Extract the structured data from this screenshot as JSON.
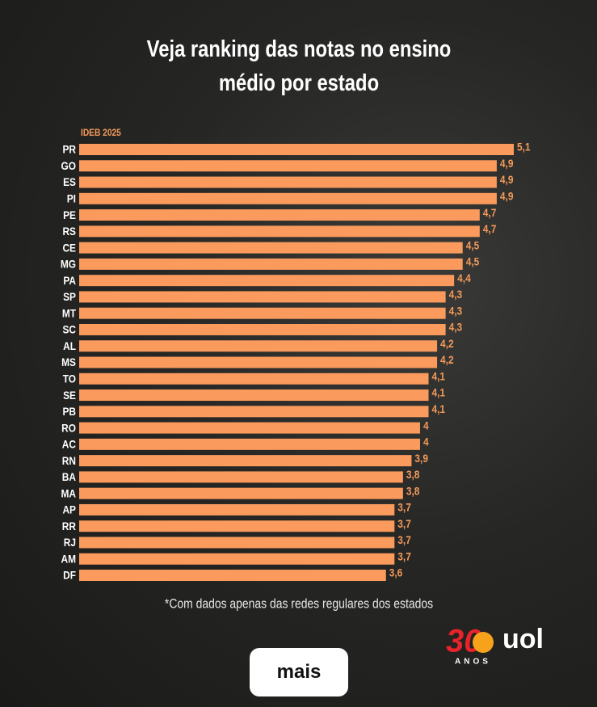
{
  "chart_data": {
    "type": "bar",
    "orientation": "horizontal",
    "title": "Veja ranking das notas no ensino médio por estado",
    "subtitle": "IDEB 2025",
    "categories": [
      "PR",
      "GO",
      "ES",
      "PI",
      "PE",
      "RS",
      "CE",
      "MG",
      "PA",
      "SP",
      "MT",
      "SC",
      "AL",
      "MS",
      "TO",
      "SE",
      "PB",
      "RO",
      "AC",
      "RN",
      "BA",
      "MA",
      "AP",
      "RR",
      "RJ",
      "AM",
      "DF"
    ],
    "values": [
      5.1,
      4.9,
      4.9,
      4.9,
      4.7,
      4.7,
      4.5,
      4.5,
      4.4,
      4.3,
      4.3,
      4.3,
      4.2,
      4.2,
      4.1,
      4.1,
      4.1,
      4,
      4,
      3.9,
      3.8,
      3.8,
      3.7,
      3.7,
      3.7,
      3.7,
      3.6
    ],
    "value_labels": [
      "5,1",
      "4,9",
      "4,9",
      "4,9",
      "4,7",
      "4,7",
      "4,5",
      "4,5",
      "4,4",
      "4,3",
      "4,3",
      "4,3",
      "4,2",
      "4,2",
      "4,1",
      "4,1",
      "4,1",
      "4",
      "4",
      "3,9",
      "3,8",
      "3,8",
      "3,7",
      "3,7",
      "3,7",
      "3,7",
      "3,6"
    ],
    "color": "#fa9a5c",
    "footnote": "*Com dados apenas das redes regulares dos estados"
  },
  "brand": {
    "number": "30",
    "name": "uol",
    "tagline": "ANOS"
  },
  "button": {
    "label": "mais"
  }
}
